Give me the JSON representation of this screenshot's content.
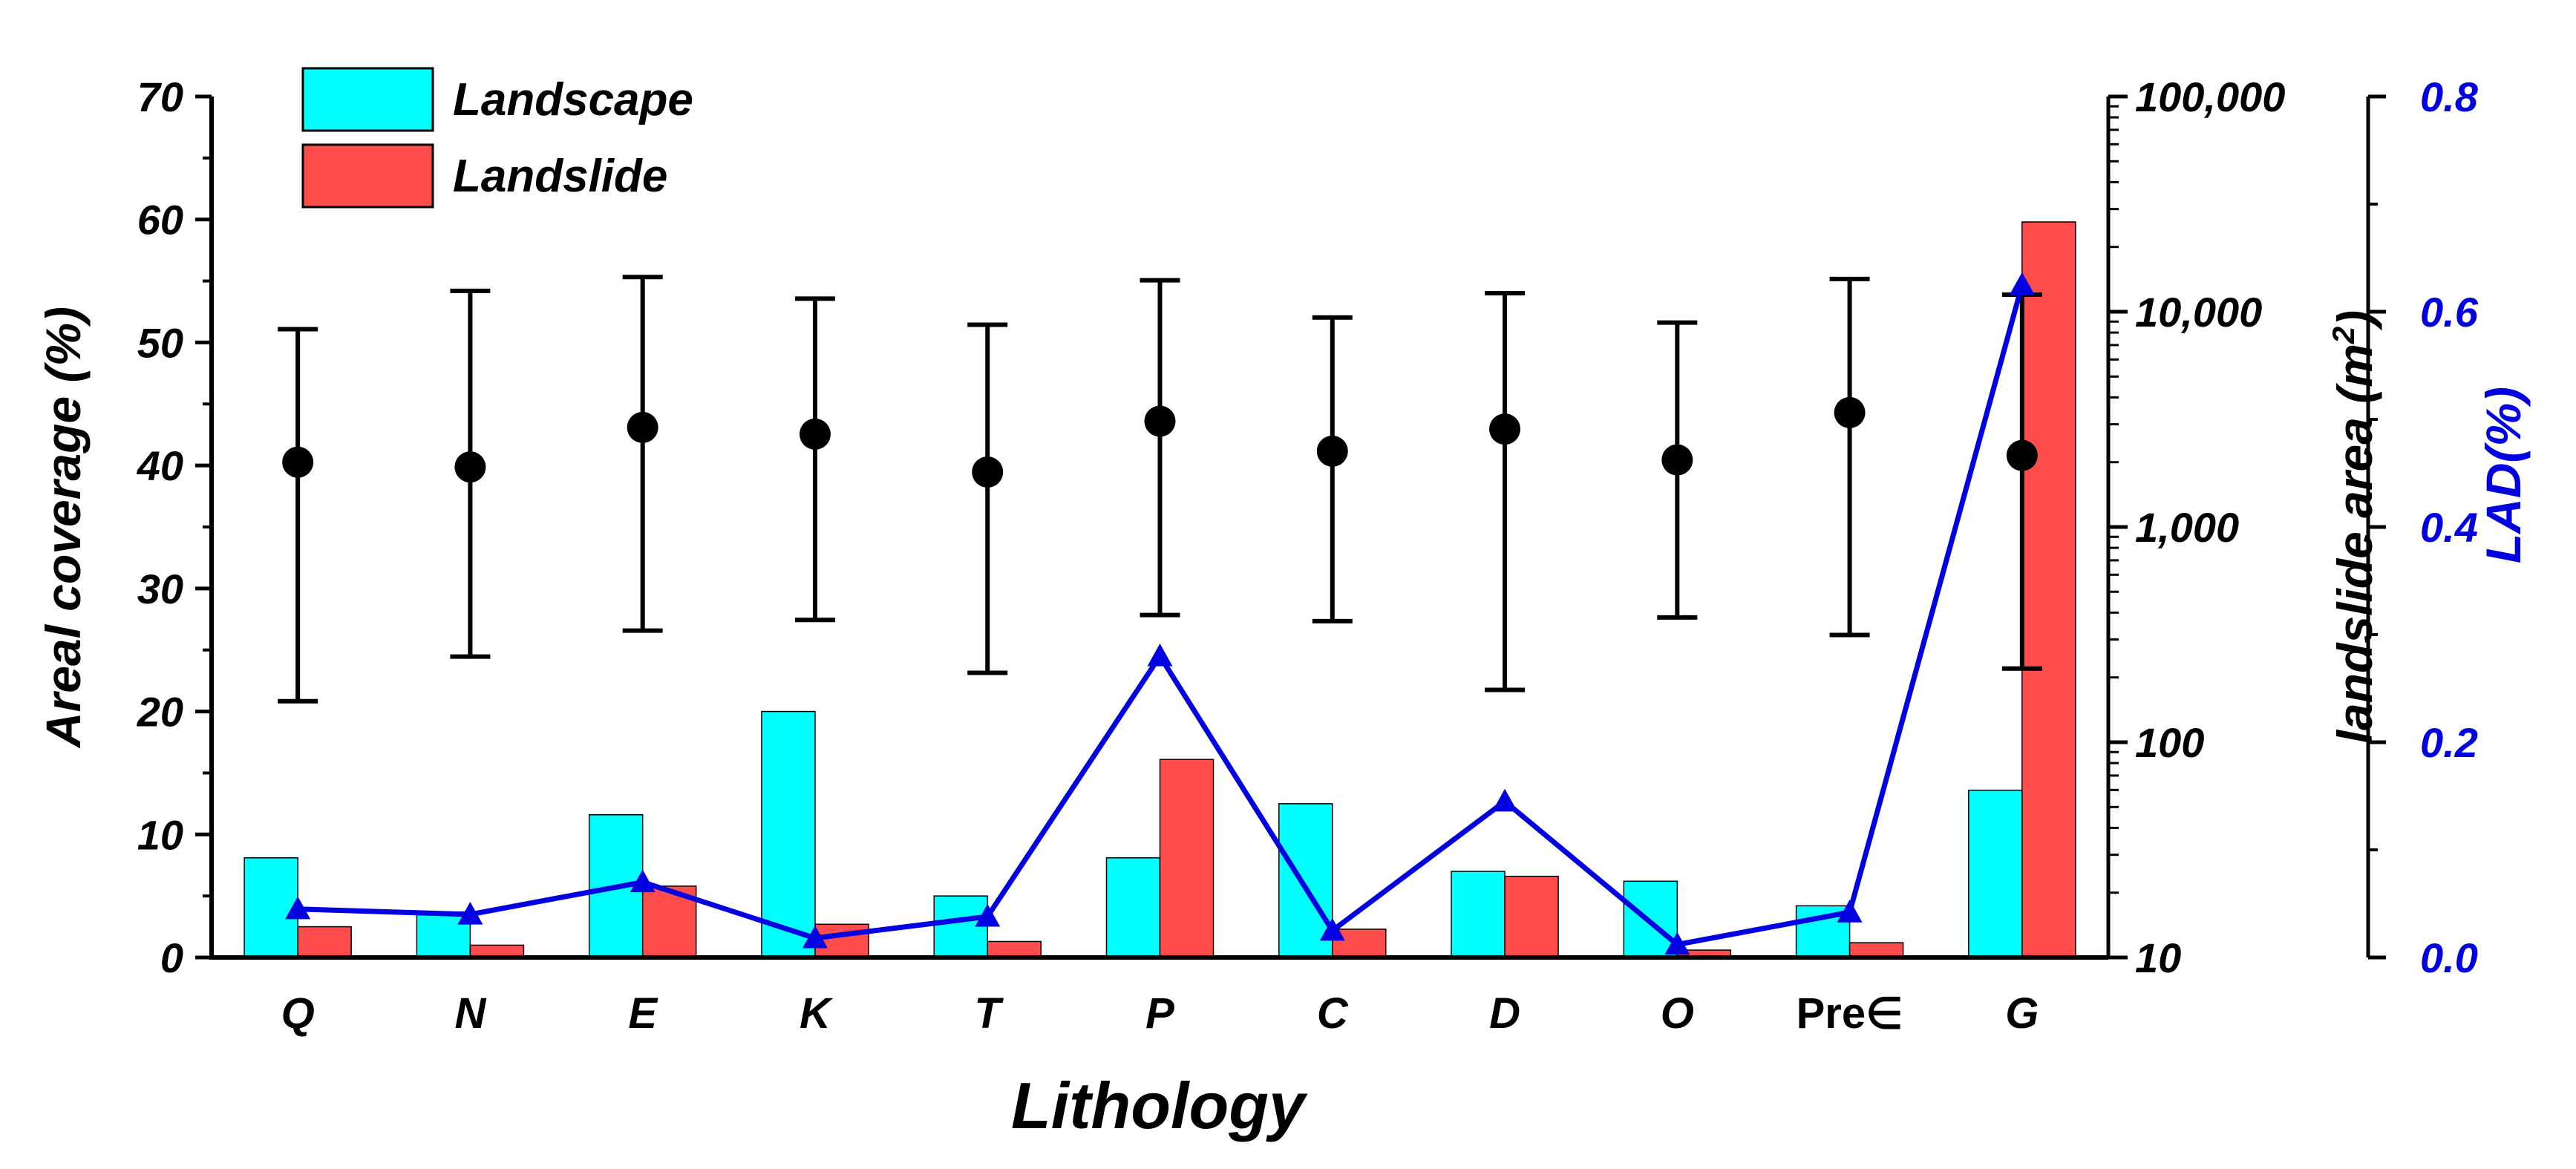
{
  "chart_data": {
    "type": "bar",
    "xlabel": "Lithology",
    "categories": [
      "Q",
      "N",
      "E",
      "K",
      "T",
      "P",
      "C",
      "D",
      "O",
      "Pre∈",
      "G"
    ],
    "series": [
      {
        "name": "Landscape",
        "axis": "left",
        "color": "#00ffff",
        "values": [
          8.1,
          3.7,
          11.6,
          20.0,
          5.0,
          8.1,
          12.5,
          7.0,
          6.2,
          4.2,
          13.6
        ]
      },
      {
        "name": "Landslide",
        "axis": "left",
        "color": "#ff4d4d",
        "values": [
          2.5,
          1.0,
          5.8,
          2.7,
          1.3,
          16.1,
          2.3,
          6.6,
          0.6,
          1.2,
          59.8
        ]
      },
      {
        "name": "LAD(%)",
        "type": "line",
        "axis": "right",
        "color": "#0000e0",
        "values": [
          0.045,
          0.04,
          0.07,
          0.018,
          0.038,
          0.28,
          0.025,
          0.145,
          0.012,
          0.042,
          0.625
        ]
      },
      {
        "name": "landslide area (m2)",
        "type": "scatter-errorbar",
        "axis": "middle",
        "scale": "log",
        "color": "#000000",
        "values": [
          2000,
          1900,
          2900,
          2700,
          1800,
          3100,
          2250,
          2850,
          2050,
          3400,
          2150
        ],
        "lower": [
          155,
          250,
          330,
          370,
          210,
          390,
          365,
          175,
          380,
          315,
          220
        ],
        "upper": [
          8300,
          12500,
          14500,
          11500,
          8700,
          14000,
          9400,
          12200,
          8900,
          14200,
          12000
        ]
      }
    ],
    "axes": {
      "left": {
        "label": "Areal coverage (%)",
        "ylim": [
          0,
          70
        ],
        "ticks": [
          "0",
          "10",
          "20",
          "30",
          "40",
          "50",
          "60",
          "70"
        ]
      },
      "middle": {
        "label_main": "landslide area (m",
        "label_sup": "2",
        "label_close": ")",
        "scale": "log",
        "ylim": [
          10,
          100000
        ],
        "ticks": [
          "10",
          "100",
          "1,000",
          "10,000",
          "100,000"
        ]
      },
      "right": {
        "label": "LAD(%)",
        "ylim": [
          0,
          0.8
        ],
        "ticks": [
          "0.0",
          "0.2",
          "0.4",
          "0.6",
          "0.8"
        ]
      }
    },
    "legend": {
      "position": "top-left",
      "entries": [
        "Landscape",
        "Landslide"
      ]
    }
  }
}
